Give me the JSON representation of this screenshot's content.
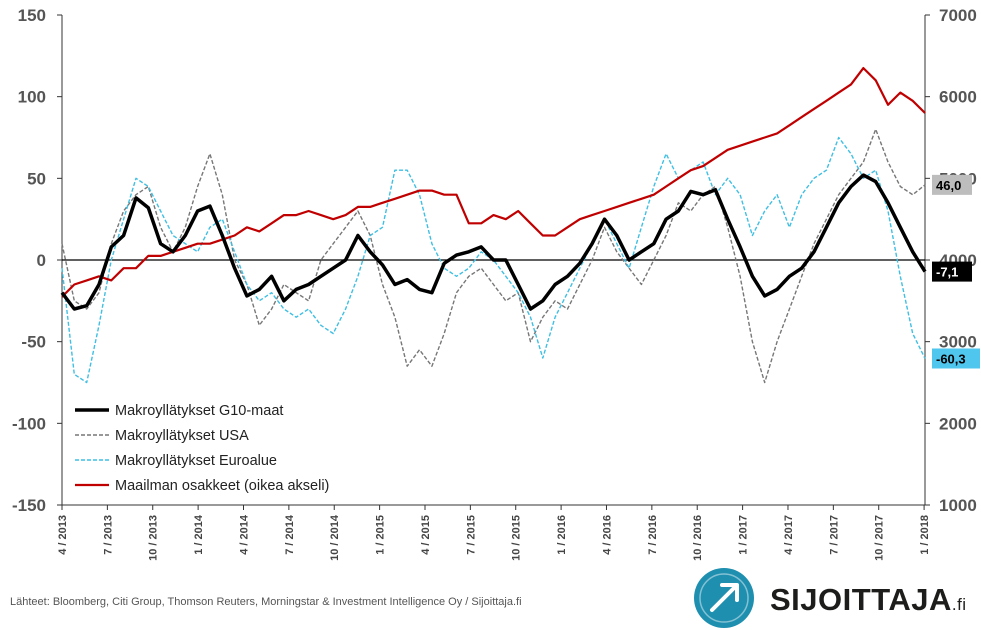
{
  "chart_data": {
    "type": "line",
    "title": "",
    "x": [
      "4 / 2013",
      "7 / 2013",
      "10 / 2013",
      "1 / 2014",
      "4 / 2014",
      "7 / 2014",
      "10 / 2014",
      "1 / 2015",
      "4 / 2015",
      "7 / 2015",
      "10 / 2015",
      "1 / 2016",
      "4 / 2016",
      "7 / 2016",
      "10 / 2016",
      "1 / 2017",
      "4 / 2017",
      "7 / 2017",
      "10 / 2017",
      "1 / 2018"
    ],
    "x_ticks": [
      "4 / 2013",
      "7 / 2013",
      "10 / 2013",
      "1 / 2014",
      "4 / 2014",
      "7 / 2014",
      "10 / 2014",
      "1 / 2015",
      "4 / 2015",
      "7 / 2015",
      "10 / 2015",
      "1 / 2016",
      "4 / 2016",
      "7 / 2016",
      "10 / 2016",
      "1 / 2017",
      "4 / 2017",
      "7 / 2017",
      "10 / 2017",
      "1 / 2018"
    ],
    "y_left_ticks": [
      "150",
      "100",
      "50",
      "0",
      "-50",
      "-100",
      "-150"
    ],
    "y_right_ticks": [
      "7000",
      "6000",
      "5000",
      "4000",
      "3000",
      "2000",
      "1000"
    ],
    "ylim_left": [
      -150,
      150
    ],
    "ylim_right": [
      1000,
      7000
    ],
    "zero_line": 0,
    "legend_position": "bottom-left",
    "series": [
      {
        "name": "Makroyllätykset G10-maat",
        "axis": "left",
        "color": "#000000",
        "style": "solid-thick",
        "end_label": "-7,1",
        "values": [
          [
            0,
            -20
          ],
          [
            0.5,
            -30
          ],
          [
            1,
            -28
          ],
          [
            1.5,
            -15
          ],
          [
            2,
            8
          ],
          [
            2.5,
            15
          ],
          [
            3,
            38
          ],
          [
            3.5,
            32
          ],
          [
            4,
            10
          ],
          [
            4.5,
            5
          ],
          [
            5,
            15
          ],
          [
            5.5,
            30
          ],
          [
            6,
            33
          ],
          [
            6.5,
            15
          ],
          [
            7,
            -5
          ],
          [
            7.5,
            -22
          ],
          [
            8,
            -18
          ],
          [
            8.5,
            -10
          ],
          [
            9,
            -25
          ],
          [
            9.5,
            -18
          ],
          [
            10,
            -15
          ],
          [
            10.5,
            -10
          ],
          [
            11,
            -5
          ],
          [
            11.5,
            0
          ],
          [
            12,
            15
          ],
          [
            12.5,
            5
          ],
          [
            13,
            -3
          ],
          [
            13.5,
            -15
          ],
          [
            14,
            -12
          ],
          [
            14.5,
            -18
          ],
          [
            15,
            -20
          ],
          [
            15.5,
            -2
          ],
          [
            16,
            3
          ],
          [
            16.5,
            5
          ],
          [
            17,
            8
          ],
          [
            17.5,
            0
          ],
          [
            18,
            0
          ],
          [
            18.5,
            -15
          ],
          [
            19,
            -30
          ],
          [
            19.5,
            -25
          ],
          [
            20,
            -15
          ],
          [
            20.5,
            -10
          ],
          [
            21,
            -2
          ],
          [
            21.5,
            10
          ],
          [
            22,
            25
          ],
          [
            22.5,
            15
          ],
          [
            23,
            0
          ],
          [
            23.5,
            5
          ],
          [
            24,
            10
          ],
          [
            24.5,
            25
          ],
          [
            25,
            30
          ],
          [
            25.5,
            42
          ],
          [
            26,
            40
          ],
          [
            26.5,
            43
          ],
          [
            27,
            25
          ],
          [
            27.5,
            8
          ],
          [
            28,
            -10
          ],
          [
            28.5,
            -22
          ],
          [
            29,
            -18
          ],
          [
            29.5,
            -10
          ],
          [
            30,
            -5
          ],
          [
            30.5,
            5
          ],
          [
            31,
            20
          ],
          [
            31.5,
            35
          ],
          [
            32,
            45
          ],
          [
            32.5,
            52
          ],
          [
            33,
            48
          ],
          [
            33.5,
            35
          ],
          [
            34,
            20
          ],
          [
            34.5,
            5
          ],
          [
            35,
            -7.1
          ]
        ]
      },
      {
        "name": "Makroyllätykset USA",
        "axis": "left",
        "color": "#777777",
        "style": "dashed",
        "end_label": "46,0",
        "values": [
          [
            0,
            10
          ],
          [
            0.5,
            -25
          ],
          [
            1,
            -30
          ],
          [
            1.5,
            -20
          ],
          [
            2,
            10
          ],
          [
            2.5,
            30
          ],
          [
            3,
            40
          ],
          [
            3.5,
            45
          ],
          [
            4,
            20
          ],
          [
            4.5,
            5
          ],
          [
            5,
            20
          ],
          [
            5.5,
            45
          ],
          [
            6,
            65
          ],
          [
            6.5,
            40
          ],
          [
            7,
            0
          ],
          [
            7.5,
            -15
          ],
          [
            8,
            -40
          ],
          [
            8.5,
            -30
          ],
          [
            9,
            -15
          ],
          [
            9.5,
            -20
          ],
          [
            10,
            -25
          ],
          [
            10.5,
            0
          ],
          [
            11,
            10
          ],
          [
            11.5,
            20
          ],
          [
            12,
            30
          ],
          [
            12.5,
            15
          ],
          [
            13,
            -15
          ],
          [
            13.5,
            -35
          ],
          [
            14,
            -65
          ],
          [
            14.5,
            -55
          ],
          [
            15,
            -65
          ],
          [
            15.5,
            -45
          ],
          [
            16,
            -20
          ],
          [
            16.5,
            -10
          ],
          [
            17,
            -5
          ],
          [
            17.5,
            -15
          ],
          [
            18,
            -25
          ],
          [
            18.5,
            -20
          ],
          [
            19,
            -50
          ],
          [
            19.5,
            -35
          ],
          [
            20,
            -25
          ],
          [
            20.5,
            -30
          ],
          [
            21,
            -15
          ],
          [
            21.5,
            0
          ],
          [
            22,
            20
          ],
          [
            22.5,
            5
          ],
          [
            23,
            -5
          ],
          [
            23.5,
            -15
          ],
          [
            24,
            0
          ],
          [
            24.5,
            15
          ],
          [
            25,
            35
          ],
          [
            25.5,
            30
          ],
          [
            26,
            40
          ],
          [
            26.5,
            45
          ],
          [
            27,
            20
          ],
          [
            27.5,
            -10
          ],
          [
            28,
            -50
          ],
          [
            28.5,
            -75
          ],
          [
            29,
            -50
          ],
          [
            29.5,
            -30
          ],
          [
            30,
            -10
          ],
          [
            30.5,
            10
          ],
          [
            31,
            25
          ],
          [
            31.5,
            40
          ],
          [
            32,
            50
          ],
          [
            32.5,
            60
          ],
          [
            33,
            80
          ],
          [
            33.5,
            60
          ],
          [
            34,
            45
          ],
          [
            34.5,
            40
          ],
          [
            35,
            46.0
          ]
        ]
      },
      {
        "name": "Makroyllätykset Euroalue",
        "axis": "left",
        "color": "#3fbfe3",
        "style": "dashed",
        "end_label": "-60,3",
        "values": [
          [
            0,
            -5
          ],
          [
            0.5,
            -70
          ],
          [
            1,
            -75
          ],
          [
            1.5,
            -40
          ],
          [
            2,
            0
          ],
          [
            2.5,
            25
          ],
          [
            3,
            50
          ],
          [
            3.5,
            45
          ],
          [
            4,
            30
          ],
          [
            4.5,
            15
          ],
          [
            5,
            10
          ],
          [
            5.5,
            5
          ],
          [
            6,
            20
          ],
          [
            6.5,
            25
          ],
          [
            7,
            5
          ],
          [
            7.5,
            -15
          ],
          [
            8,
            -25
          ],
          [
            8.5,
            -20
          ],
          [
            9,
            -30
          ],
          [
            9.5,
            -35
          ],
          [
            10,
            -30
          ],
          [
            10.5,
            -40
          ],
          [
            11,
            -45
          ],
          [
            11.5,
            -30
          ],
          [
            12,
            -10
          ],
          [
            12.5,
            15
          ],
          [
            13,
            20
          ],
          [
            13.5,
            55
          ],
          [
            14,
            55
          ],
          [
            14.5,
            40
          ],
          [
            15,
            10
          ],
          [
            15.5,
            -5
          ],
          [
            16,
            -10
          ],
          [
            16.5,
            -5
          ],
          [
            17,
            5
          ],
          [
            17.5,
            0
          ],
          [
            18,
            -10
          ],
          [
            18.5,
            -20
          ],
          [
            19,
            -35
          ],
          [
            19.5,
            -60
          ],
          [
            20,
            -35
          ],
          [
            20.5,
            -20
          ],
          [
            21,
            -5
          ],
          [
            21.5,
            10
          ],
          [
            22,
            25
          ],
          [
            22.5,
            10
          ],
          [
            23,
            -5
          ],
          [
            23.5,
            20
          ],
          [
            24,
            45
          ],
          [
            24.5,
            65
          ],
          [
            25,
            50
          ],
          [
            25.5,
            55
          ],
          [
            26,
            60
          ],
          [
            26.5,
            40
          ],
          [
            27,
            50
          ],
          [
            27.5,
            40
          ],
          [
            28,
            15
          ],
          [
            28.5,
            30
          ],
          [
            29,
            40
          ],
          [
            29.5,
            20
          ],
          [
            30,
            40
          ],
          [
            30.5,
            50
          ],
          [
            31,
            55
          ],
          [
            31.5,
            75
          ],
          [
            32,
            65
          ],
          [
            32.5,
            50
          ],
          [
            33,
            55
          ],
          [
            33.5,
            30
          ],
          [
            34,
            -10
          ],
          [
            34.5,
            -45
          ],
          [
            35,
            -60.3
          ]
        ]
      },
      {
        "name": "Maailman osakkeet (oikea akseli)",
        "axis": "right",
        "color": "#c00000",
        "style": "solid",
        "end_label": "",
        "values": [
          [
            0,
            3550
          ],
          [
            0.5,
            3700
          ],
          [
            1,
            3750
          ],
          [
            1.5,
            3800
          ],
          [
            2,
            3750
          ],
          [
            2.5,
            3900
          ],
          [
            3,
            3900
          ],
          [
            3.5,
            4050
          ],
          [
            4,
            4050
          ],
          [
            4.5,
            4100
          ],
          [
            5,
            4150
          ],
          [
            5.5,
            4200
          ],
          [
            6,
            4200
          ],
          [
            6.5,
            4250
          ],
          [
            7,
            4300
          ],
          [
            7.5,
            4400
          ],
          [
            8,
            4350
          ],
          [
            8.5,
            4450
          ],
          [
            9,
            4550
          ],
          [
            9.5,
            4550
          ],
          [
            10,
            4600
          ],
          [
            10.5,
            4550
          ],
          [
            11,
            4500
          ],
          [
            11.5,
            4550
          ],
          [
            12,
            4650
          ],
          [
            12.5,
            4650
          ],
          [
            13,
            4700
          ],
          [
            13.5,
            4750
          ],
          [
            14,
            4800
          ],
          [
            14.5,
            4850
          ],
          [
            15,
            4850
          ],
          [
            15.5,
            4800
          ],
          [
            16,
            4800
          ],
          [
            16.5,
            4450
          ],
          [
            17,
            4450
          ],
          [
            17.5,
            4550
          ],
          [
            18,
            4500
          ],
          [
            18.5,
            4600
          ],
          [
            19,
            4450
          ],
          [
            19.5,
            4300
          ],
          [
            20,
            4300
          ],
          [
            20.5,
            4400
          ],
          [
            21,
            4500
          ],
          [
            21.5,
            4550
          ],
          [
            22,
            4600
          ],
          [
            22.5,
            4650
          ],
          [
            23,
            4700
          ],
          [
            23.5,
            4750
          ],
          [
            24,
            4800
          ],
          [
            24.5,
            4900
          ],
          [
            25,
            5000
          ],
          [
            25.5,
            5100
          ],
          [
            26,
            5150
          ],
          [
            26.5,
            5250
          ],
          [
            27,
            5350
          ],
          [
            27.5,
            5400
          ],
          [
            28,
            5450
          ],
          [
            28.5,
            5500
          ],
          [
            29,
            5550
          ],
          [
            29.5,
            5650
          ],
          [
            30,
            5750
          ],
          [
            30.5,
            5850
          ],
          [
            31,
            5950
          ],
          [
            31.5,
            6050
          ],
          [
            32,
            6150
          ],
          [
            32.5,
            6350
          ],
          [
            33,
            6200
          ],
          [
            33.5,
            5900
          ],
          [
            34,
            6050
          ],
          [
            34.5,
            5950
          ],
          [
            35,
            5800
          ]
        ]
      }
    ]
  },
  "source_text": "Lähteet: Bloomberg, Citi Group, Thomson Reuters, Morningstar & Investment Intelligence Oy / Sijoittaja.fi",
  "logo": {
    "word": "SIJOITTAJA",
    "suffix": ".fi",
    "color": "#1f8fb0"
  }
}
